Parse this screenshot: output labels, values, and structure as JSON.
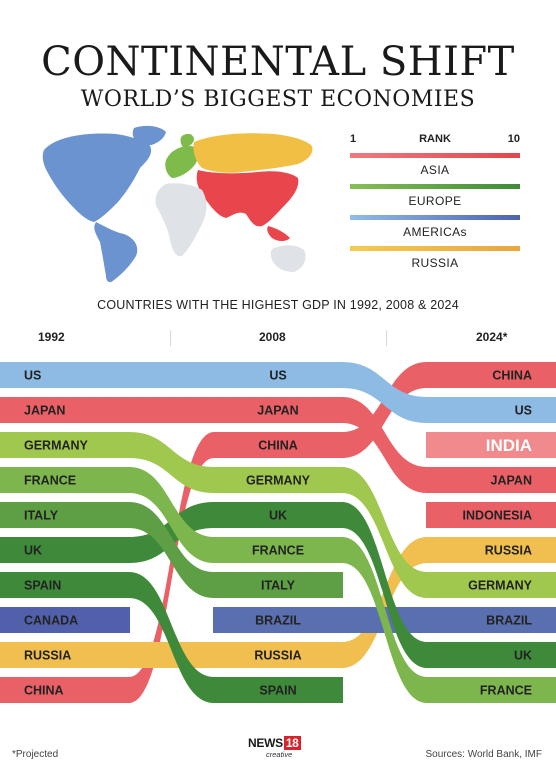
{
  "title": "CONTINENTAL SHIFT",
  "subtitle": "WORLD’S BIGGEST ECONOMIES",
  "legend": {
    "rank_min": "1",
    "rank_label": "RANK",
    "rank_max": "10",
    "items": [
      {
        "label": "ASIA",
        "color_light": "#ef7a7e",
        "color_dark": "#e2474c"
      },
      {
        "label": "EUROPE",
        "color_light": "#86bf55",
        "color_dark": "#3f8a3a"
      },
      {
        "label": "AMERICAs",
        "color_light": "#8fbde6",
        "color_dark": "#4c63ad"
      },
      {
        "label": "RUSSIA",
        "color_light": "#f3cb52",
        "color_dark": "#e7a63e"
      }
    ]
  },
  "chart_heading": "COUNTRIES WITH THE HIGHEST GDP IN 1992, 2008 & 2024",
  "footnote": "*Projected",
  "sources": "Sources: World Bank, IMF",
  "logo": {
    "main": "NEWS",
    "number": "18",
    "sub": "creative"
  },
  "region_colors": {
    "asia": "#e96166",
    "asia_light": "#f18a8c",
    "europe_1": "#a0c84e",
    "europe_2": "#7db64d",
    "europe_3": "#5e9e44",
    "europe_4": "#3f8a3a",
    "americas_us": "#8dbbe3",
    "americas_canada": "#5060ab",
    "americas_brazil": "#5a6fb0",
    "russia": "#f0bf4f"
  },
  "chart_data": {
    "type": "bump",
    "years": [
      "1992",
      "2008",
      "2024*"
    ],
    "rank_axis": [
      1,
      10
    ],
    "countries": [
      {
        "name": "US",
        "region": "americas",
        "ranks": [
          1,
          1,
          2
        ]
      },
      {
        "name": "JAPAN",
        "region": "asia",
        "ranks": [
          2,
          2,
          4
        ]
      },
      {
        "name": "GERMANY",
        "region": "europe",
        "ranks": [
          3,
          4,
          7
        ]
      },
      {
        "name": "FRANCE",
        "region": "europe",
        "ranks": [
          4,
          6,
          10
        ]
      },
      {
        "name": "ITALY",
        "region": "europe",
        "ranks": [
          5,
          7,
          null
        ]
      },
      {
        "name": "UK",
        "region": "europe",
        "ranks": [
          6,
          5,
          9
        ]
      },
      {
        "name": "SPAIN",
        "region": "europe",
        "ranks": [
          7,
          10,
          null
        ]
      },
      {
        "name": "CANADA",
        "region": "americas",
        "ranks": [
          8,
          null,
          null
        ]
      },
      {
        "name": "RUSSIA",
        "region": "russia",
        "ranks": [
          9,
          9,
          6
        ]
      },
      {
        "name": "CHINA",
        "region": "asia",
        "ranks": [
          10,
          3,
          1
        ]
      },
      {
        "name": "BRAZIL",
        "region": "americas",
        "ranks": [
          null,
          8,
          8
        ]
      },
      {
        "name": "INDIA",
        "region": "asia",
        "ranks": [
          null,
          null,
          3
        ]
      },
      {
        "name": "INDONESIA",
        "region": "asia",
        "ranks": [
          null,
          null,
          5
        ]
      }
    ]
  }
}
